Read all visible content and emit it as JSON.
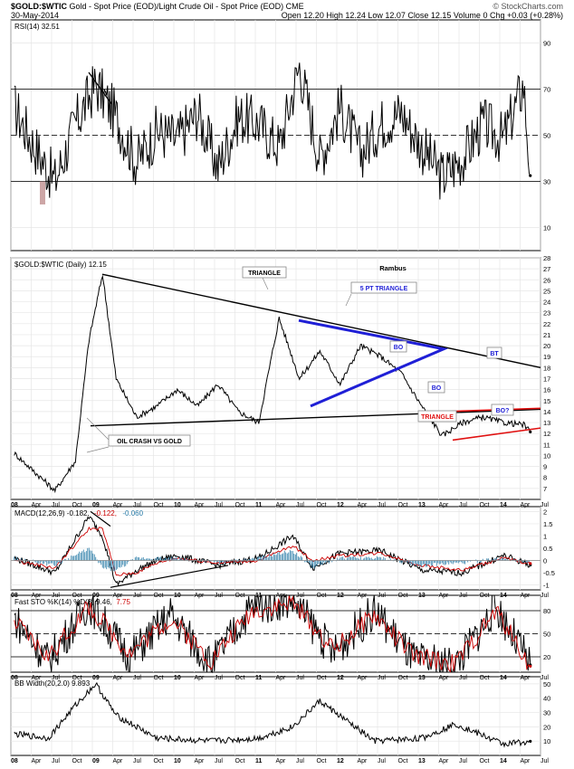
{
  "header": {
    "symbol": "$GOLD:$WTIC",
    "description": "Gold - Spot Price (EOD)/Light Crude Oil - Spot Price (EOD)  CME",
    "date": "30-May-2014",
    "stats": "Open 12.20  High 12.24  Low 12.07  Close 12.15  Volume 0  Chg +0.03 (+0.28%)",
    "watermark": "© StockCharts.com"
  },
  "time_axis": {
    "labels": [
      "08",
      "Apr",
      "Jul",
      "Oct",
      "09",
      "Apr",
      "Jul",
      "Oct",
      "10",
      "Apr",
      "Jul",
      "Oct",
      "11",
      "Apr",
      "Jul",
      "Oct",
      "12",
      "Apr",
      "Jul",
      "Oct",
      "13",
      "Apr",
      "Jul",
      "Oct",
      "14",
      "Apr",
      "Jul"
    ],
    "bold": [
      "08",
      "09",
      "10",
      "11",
      "12",
      "13",
      "14"
    ]
  },
  "chart_data": [
    {
      "type": "line",
      "panel": "rsi",
      "title": "RSI(14) 32.51",
      "ylim": [
        0,
        100
      ],
      "ticks": [
        10,
        30,
        50,
        70,
        90
      ],
      "reference_lines": [
        30,
        50,
        70
      ],
      "series": [
        {
          "name": "RSI(14)",
          "x": [
            "2008-01",
            "2008-04",
            "2008-07",
            "2008-10",
            "2009-01",
            "2009-04",
            "2009-07",
            "2009-10",
            "2010-01",
            "2010-04",
            "2010-07",
            "2010-10",
            "2011-01",
            "2011-04",
            "2011-07",
            "2011-10",
            "2012-01",
            "2012-04",
            "2012-07",
            "2012-10",
            "2013-01",
            "2013-04",
            "2013-07",
            "2013-10",
            "2014-01",
            "2014-04",
            "2014-05"
          ],
          "values": [
            62,
            45,
            30,
            55,
            72,
            58,
            38,
            52,
            48,
            60,
            36,
            58,
            55,
            45,
            80,
            40,
            62,
            42,
            55,
            60,
            45,
            32,
            40,
            55,
            48,
            72,
            32.51
          ]
        }
      ],
      "annotations": [
        {
          "type": "trendline",
          "label": ""
        }
      ]
    },
    {
      "type": "line",
      "panel": "price",
      "title": "$GOLD:$WTIC (Daily) 12.15",
      "ylim": [
        6,
        28
      ],
      "ticks": [
        7,
        8,
        9,
        10,
        11,
        12,
        13,
        14,
        15,
        16,
        17,
        18,
        19,
        20,
        21,
        22,
        23,
        24,
        25,
        26,
        27,
        28
      ],
      "series": [
        {
          "name": "$GOLD:$WTIC",
          "x": [
            "2008-01",
            "2008-04",
            "2008-07",
            "2008-10",
            "2008-12",
            "2009-02",
            "2009-04",
            "2009-07",
            "2009-10",
            "2010-01",
            "2010-04",
            "2010-07",
            "2010-10",
            "2011-01",
            "2011-04",
            "2011-07",
            "2011-10",
            "2012-01",
            "2012-04",
            "2012-07",
            "2012-10",
            "2013-01",
            "2013-04",
            "2013-07",
            "2013-10",
            "2014-01",
            "2014-04",
            "2014-05"
          ],
          "values": [
            10.2,
            8.5,
            6.8,
            9.5,
            20.5,
            26.5,
            17.0,
            13.5,
            14.5,
            16.0,
            14.5,
            16.5,
            14.0,
            13.0,
            22.5,
            17.0,
            19.5,
            16.5,
            20.0,
            19.0,
            17.5,
            14.5,
            11.8,
            13.0,
            13.5,
            13.0,
            12.8,
            12.15
          ]
        }
      ],
      "annotations": [
        "TRIANGLE",
        "Rambus",
        "5 PT TRIANGLE",
        "BO",
        "BO",
        "BT",
        "TRIANGLE",
        "BO?",
        "OIL CRASH VS GOLD"
      ]
    },
    {
      "type": "line",
      "panel": "macd",
      "title": "MACD(12,26,9) -0.182, -0.122, -0.060",
      "title_parts": [
        "MACD(12,26,9) -0.182,",
        "-0.122,",
        "-0.060"
      ],
      "ylim": [
        -1.2,
        2.2
      ],
      "ticks": [
        -1.0,
        -0.5,
        0.0,
        0.5,
        1.0,
        1.5,
        2.0
      ],
      "series": [
        {
          "name": "MACD",
          "x": [
            "2008-01",
            "2008-07",
            "2008-12",
            "2009-02",
            "2009-04",
            "2009-07",
            "2009-10",
            "2010-01",
            "2010-07",
            "2011-01",
            "2011-06",
            "2011-09",
            "2012-01",
            "2012-07",
            "2013-01",
            "2013-07",
            "2014-01",
            "2014-05"
          ],
          "values": [
            0.1,
            -0.5,
            1.8,
            1.0,
            -1.0,
            -0.4,
            0.0,
            0.2,
            -0.2,
            0.1,
            1.0,
            -0.3,
            0.3,
            0.4,
            -0.4,
            -0.5,
            0.2,
            -0.182
          ]
        },
        {
          "name": "Signal",
          "values": [
            0.0,
            -0.3,
            1.3,
            1.3,
            -0.6,
            -0.5,
            -0.1,
            0.1,
            -0.1,
            0.0,
            0.6,
            0.0,
            0.2,
            0.3,
            -0.2,
            -0.4,
            0.1,
            -0.122
          ]
        },
        {
          "name": "Histogram",
          "values": [
            0.1,
            -0.2,
            0.5,
            -0.3,
            -0.4,
            0.1,
            0.1,
            0.1,
            -0.1,
            0.1,
            0.4,
            -0.3,
            0.1,
            0.1,
            -0.2,
            -0.1,
            0.1,
            -0.06
          ]
        }
      ]
    },
    {
      "type": "line",
      "panel": "stochastic",
      "title": "Fast STO %K(14) %D(3) 9.46, 7.75",
      "title_parts": [
        "Fast STO %K(14) %D(3) 9.46,",
        "7.75"
      ],
      "ylim": [
        0,
        100
      ],
      "ticks": [
        20,
        50,
        80
      ],
      "reference_lines": [
        20,
        50,
        80
      ],
      "series": [
        {
          "name": "%K(14)",
          "x": [
            "2008-01",
            "2008-06",
            "2008-12",
            "2009-06",
            "2009-12",
            "2010-06",
            "2010-12",
            "2011-06",
            "2011-12",
            "2012-06",
            "2012-12",
            "2013-06",
            "2013-12",
            "2014-05"
          ],
          "values": [
            70,
            15,
            90,
            20,
            75,
            10,
            85,
            95,
            25,
            80,
            15,
            10,
            85,
            9.46
          ]
        },
        {
          "name": "%D(3)",
          "values": [
            65,
            20,
            85,
            25,
            70,
            15,
            80,
            90,
            30,
            75,
            20,
            12,
            80,
            7.75
          ]
        }
      ]
    },
    {
      "type": "line",
      "panel": "bb_width",
      "title": "BB Width(20,2.0) 9.893",
      "ylim": [
        0,
        55
      ],
      "ticks": [
        10,
        20,
        30,
        40,
        50
      ],
      "series": [
        {
          "name": "BB Width(20,2.0)",
          "x": [
            "2008-01",
            "2008-06",
            "2008-10",
            "2009-01",
            "2009-04",
            "2009-10",
            "2010-06",
            "2011-01",
            "2011-06",
            "2011-10",
            "2012-06",
            "2013-01",
            "2013-06",
            "2014-01",
            "2014-05"
          ],
          "values": [
            15,
            12,
            35,
            50,
            28,
            12,
            10,
            12,
            20,
            38,
            10,
            12,
            22,
            8,
            9.893
          ]
        }
      ]
    }
  ]
}
